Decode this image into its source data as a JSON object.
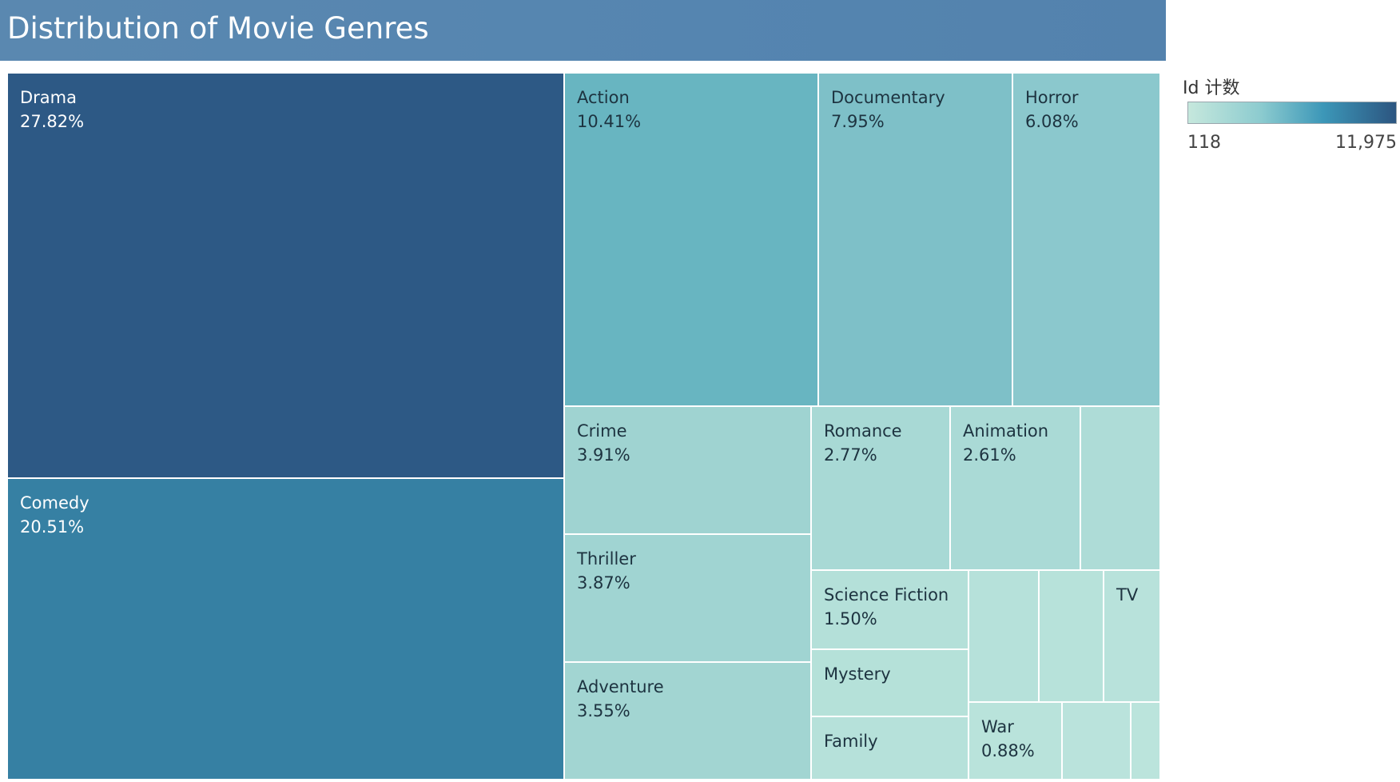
{
  "chart_data": {
    "type": "treemap",
    "title": "Distribution of Movie Genres",
    "measure": "Id 计数",
    "color_scale": {
      "min": 118,
      "max": 11975,
      "min_label": "118",
      "max_label": "11,975",
      "colors": [
        "#c6e8dd",
        "#8ccbcf",
        "#3c97b8",
        "#2c5580"
      ]
    },
    "cells": [
      {
        "name": "Drama",
        "label": "27.82%",
        "percent": 27.82,
        "color": "#2d5985"
      },
      {
        "name": "Comedy",
        "label": "20.51%",
        "percent": 20.51,
        "color": "#3680a3"
      },
      {
        "name": "Action",
        "label": "10.41%",
        "percent": 10.41,
        "color": "#68b5c1"
      },
      {
        "name": "Documentary",
        "label": "7.95%",
        "percent": 7.95,
        "color": "#7ec0c8"
      },
      {
        "name": "Horror",
        "label": "6.08%",
        "percent": 6.08,
        "color": "#8bc8cd"
      },
      {
        "name": "Crime",
        "label": "3.91%",
        "percent": 3.91,
        "color": "#9fd3d1"
      },
      {
        "name": "Thriller",
        "label": "3.87%",
        "percent": 3.87,
        "color": "#a0d4d2"
      },
      {
        "name": "Adventure",
        "label": "3.55%",
        "percent": 3.55,
        "color": "#a2d5d2"
      },
      {
        "name": "Romance",
        "label": "2.77%",
        "percent": 2.77,
        "color": "#a8d9d5"
      },
      {
        "name": "Animation",
        "label": "2.61%",
        "percent": 2.61,
        "color": "#aadad6"
      },
      {
        "name": "",
        "label": "",
        "percent": null,
        "color": "#aedcd7"
      },
      {
        "name": "Science Fiction",
        "label": "1.50%",
        "percent": 1.5,
        "color": "#b4e0d9"
      },
      {
        "name": "Mystery",
        "label": "",
        "percent": null,
        "color": "#b5e1d9"
      },
      {
        "name": "Family",
        "label": "",
        "percent": null,
        "color": "#b6e1da"
      },
      {
        "name": "",
        "label": "",
        "percent": null,
        "color": "#b6e1da"
      },
      {
        "name": "",
        "label": "",
        "percent": null,
        "color": "#b7e2da"
      },
      {
        "name": "TV",
        "label": "",
        "percent": null,
        "color": "#b8e2db"
      },
      {
        "name": "War",
        "label": "0.88%",
        "percent": 0.88,
        "color": "#b9e3db"
      },
      {
        "name": "",
        "label": "",
        "percent": null,
        "color": "#bae3dc"
      },
      {
        "name": "",
        "label": "",
        "percent": null,
        "color": "#bbe4dc"
      }
    ]
  }
}
